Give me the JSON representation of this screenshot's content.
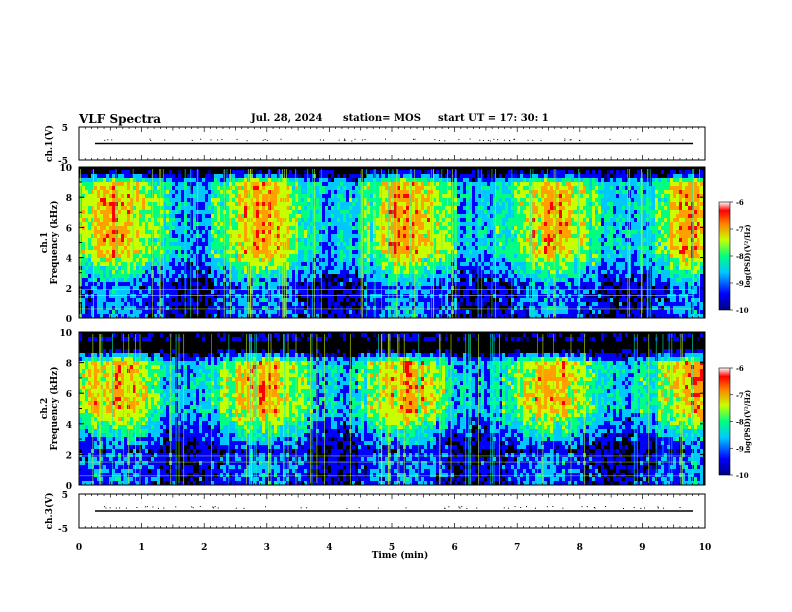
{
  "header": {
    "title": "VLF Spectra",
    "date": "Jul. 28, 2024",
    "station": "station= MOS",
    "start": "start  UT =   17: 30: 1"
  },
  "chart_data": [
    {
      "type": "line",
      "name": "ch1-waveform",
      "ylabel": "ch.1(V)",
      "yticks": [
        "5",
        "-5"
      ],
      "ylim": [
        -5,
        5
      ],
      "series": [
        {
          "values_note": "",
          "level": 0
        }
      ]
    },
    {
      "type": "heatmap",
      "name": "ch1-spectrogram",
      "ylabel": "ch.1\nFrequency (kHz)",
      "ylabel_line1": "ch.1",
      "ylabel_line2": "Frequency (kHz)",
      "ylim": [
        0,
        10
      ],
      "yticks": [
        "0",
        "2",
        "4",
        "6",
        "8",
        "10"
      ],
      "band_peak_khz": [
        4.5,
        9
      ],
      "colorbar": {
        "label": "log(PSD)(V²/Hz)",
        "ticks": [
          "-6",
          "-7",
          "-8",
          "-9",
          "-10"
        ],
        "range": [
          -10,
          -6
        ]
      }
    },
    {
      "type": "heatmap",
      "name": "ch2-spectrogram",
      "ylabel_line1": "ch.2",
      "ylabel_line2": "Frequency (kHz)",
      "ylim": [
        0,
        10
      ],
      "yticks": [
        "0",
        "2",
        "4",
        "6",
        "8",
        "10"
      ],
      "band_peak_khz": [
        5,
        8
      ],
      "colorbar": {
        "label": "log(PSD)(V²/Hz)",
        "ticks": [
          "-6",
          "-7",
          "-8",
          "-9",
          "-10"
        ],
        "range": [
          -10,
          -6
        ]
      }
    },
    {
      "type": "line",
      "name": "ch3-waveform",
      "ylabel": "ch.3(V)",
      "yticks": [
        "5",
        "-5"
      ],
      "ylim": [
        -5,
        5
      ],
      "series": [
        {
          "level": 0
        }
      ]
    }
  ],
  "xaxis": {
    "label": "Time (min)",
    "ticks": [
      "0",
      "1",
      "2",
      "3",
      "4",
      "5",
      "6",
      "7",
      "8",
      "9",
      "10"
    ],
    "xlim": [
      0,
      10
    ]
  },
  "colors": {
    "colormap": [
      "#000080",
      "#0000ff",
      "#00c8ff",
      "#00ff80",
      "#c8ff00",
      "#ffa000",
      "#ff0000",
      "#ffffff"
    ],
    "axis": "#000000"
  }
}
